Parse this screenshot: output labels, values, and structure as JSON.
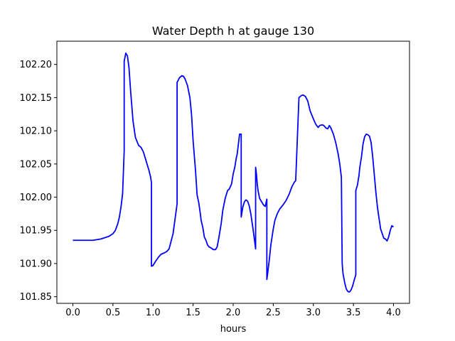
{
  "chart_data": {
    "type": "line",
    "title": "Water Depth h at gauge 130",
    "xlabel": "hours",
    "ylabel": "",
    "xlim": [
      -0.2,
      4.2
    ],
    "ylim": [
      101.84,
      102.235
    ],
    "xticks": [
      0.0,
      0.5,
      1.0,
      1.5,
      2.0,
      2.5,
      3.0,
      3.5,
      4.0
    ],
    "xtick_labels": [
      "0.0",
      "0.5",
      "1.0",
      "1.5",
      "2.0",
      "2.5",
      "3.0",
      "3.5",
      "4.0"
    ],
    "yticks": [
      101.85,
      101.9,
      101.95,
      102.0,
      102.05,
      102.1,
      102.15,
      102.2
    ],
    "ytick_labels": [
      "101.85",
      "101.90",
      "101.95",
      "102.00",
      "102.05",
      "102.10",
      "102.15",
      "102.20"
    ],
    "grid": false,
    "legend": "none",
    "series": [
      {
        "color": "#0000ff",
        "x": [
          0.0,
          0.1,
          0.25,
          0.35,
          0.4,
          0.45,
          0.5,
          0.53,
          0.56,
          0.58,
          0.6,
          0.62,
          0.64,
          0.64,
          0.66,
          0.68,
          0.7,
          0.72,
          0.75,
          0.78,
          0.82,
          0.85,
          0.88,
          0.92,
          0.95,
          0.97,
          0.98,
          0.98,
          1.0,
          1.03,
          1.07,
          1.1,
          1.14,
          1.17,
          1.2,
          1.25,
          1.3,
          1.3,
          1.33,
          1.36,
          1.38,
          1.4,
          1.43,
          1.46,
          1.48,
          1.5,
          1.53,
          1.55,
          1.57,
          1.59,
          1.6,
          1.62,
          1.64,
          1.66,
          1.68,
          1.7,
          1.73,
          1.75,
          1.78,
          1.8,
          1.82,
          1.85,
          1.87,
          1.9,
          1.93,
          1.95,
          1.98,
          2.0,
          2.02,
          2.04,
          2.05,
          2.06,
          2.08,
          2.1,
          2.1,
          2.12,
          2.14,
          2.16,
          2.18,
          2.2,
          2.22,
          2.25,
          2.28,
          2.28,
          2.29,
          2.3,
          2.31,
          2.33,
          2.36,
          2.38,
          2.4,
          2.42,
          2.42,
          2.43,
          2.45,
          2.47,
          2.5,
          2.52,
          2.55,
          2.58,
          2.62,
          2.66,
          2.7,
          2.73,
          2.76,
          2.78,
          2.82,
          2.82,
          2.85,
          2.87,
          2.9,
          2.93,
          2.96,
          3.0,
          3.03,
          3.06,
          3.08,
          3.11,
          3.13,
          3.16,
          3.18,
          3.2,
          3.22,
          3.25,
          3.28,
          3.31,
          3.33,
          3.35,
          3.36,
          3.37,
          3.39,
          3.41,
          3.43,
          3.45,
          3.47,
          3.49,
          3.51,
          3.53,
          3.53,
          3.55,
          3.57,
          3.58,
          3.6,
          3.62,
          3.64,
          3.66,
          3.68,
          3.7,
          3.72,
          3.74,
          3.76,
          3.78,
          3.8,
          3.82,
          3.84,
          3.86,
          3.88,
          3.9,
          3.92,
          3.94,
          3.96,
          3.98,
          4.0
        ],
        "y": [
          101.935,
          101.935,
          101.935,
          101.937,
          101.939,
          101.941,
          101.945,
          101.95,
          101.96,
          101.97,
          101.985,
          102.005,
          102.07,
          102.205,
          102.217,
          102.213,
          102.195,
          102.16,
          102.115,
          102.09,
          102.078,
          102.075,
          102.068,
          102.052,
          102.04,
          102.03,
          102.022,
          101.896,
          101.897,
          101.903,
          101.91,
          101.914,
          101.916,
          101.918,
          101.922,
          101.945,
          101.99,
          102.173,
          102.18,
          102.183,
          102.182,
          102.178,
          102.168,
          102.15,
          102.125,
          102.085,
          102.04,
          102.003,
          101.992,
          101.975,
          101.965,
          101.955,
          101.94,
          101.935,
          101.928,
          101.925,
          101.923,
          101.921,
          101.921,
          101.925,
          101.938,
          101.96,
          101.98,
          101.998,
          102.01,
          102.012,
          102.02,
          102.035,
          102.045,
          102.06,
          102.065,
          102.075,
          102.095,
          102.095,
          101.97,
          101.985,
          101.993,
          101.996,
          101.994,
          101.987,
          101.975,
          101.95,
          101.922,
          102.045,
          102.035,
          102.02,
          102.01,
          101.998,
          101.992,
          101.988,
          101.986,
          101.997,
          101.876,
          101.885,
          101.905,
          101.928,
          101.952,
          101.965,
          101.975,
          101.982,
          101.988,
          101.995,
          102.005,
          102.015,
          102.022,
          102.025,
          102.148,
          102.15,
          102.153,
          102.154,
          102.152,
          102.145,
          102.13,
          102.118,
          102.11,
          102.105,
          102.108,
          102.109,
          102.108,
          102.104,
          102.103,
          102.108,
          102.104,
          102.095,
          102.082,
          102.065,
          102.05,
          102.03,
          101.9,
          101.885,
          101.872,
          101.862,
          101.858,
          101.857,
          101.86,
          101.866,
          101.875,
          101.883,
          102.01,
          102.018,
          102.033,
          102.045,
          102.06,
          102.08,
          102.091,
          102.095,
          102.094,
          102.092,
          102.083,
          102.062,
          102.035,
          102.008,
          101.985,
          101.968,
          101.952,
          101.945,
          101.938,
          101.937,
          101.934,
          101.94,
          101.95,
          101.957,
          101.955
        ]
      }
    ]
  }
}
